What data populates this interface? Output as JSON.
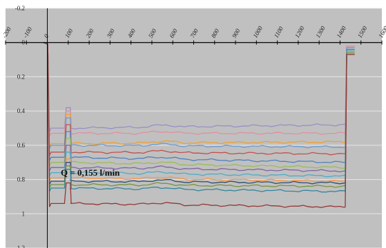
{
  "chart_data": {
    "type": "line",
    "title": "",
    "xlabel": "",
    "ylabel": "",
    "xlim": [
      -200,
      1600
    ],
    "ylim": [
      -0.2,
      1.2
    ],
    "y_inverted": true,
    "grid": true,
    "background": "#c0c0c0",
    "x_ticks": [
      "-200",
      "-100",
      "0",
      "100",
      "200",
      "300",
      "400",
      "500",
      "600",
      "700",
      "800",
      "900",
      "1000",
      "1100",
      "1200",
      "1300",
      "1400",
      "1500",
      "1600"
    ],
    "y_ticks": [
      "-0.2",
      "0",
      "0.2",
      "0.4",
      "0.6",
      "0.8",
      "1",
      "1.2"
    ],
    "annotation": "Q = 0,155 l/min",
    "start_x": -20,
    "drop_x": 10,
    "step_x": 110,
    "rise_x": 1420,
    "end_x": 1470,
    "pulse_x": [
      90,
      110
    ],
    "series": [
      {
        "color": "#9b8ec4",
        "level_start": 0.5,
        "level_end": 0.48,
        "baseline": 0.02,
        "pulse": 0.38
      },
      {
        "color": "#e08fa0",
        "level_start": 0.53,
        "level_end": 0.53,
        "baseline": 0.02,
        "pulse": 0.4
      },
      {
        "color": "#f0a030",
        "level_start": 0.59,
        "level_end": 0.58,
        "baseline": 0.03,
        "pulse": 0.42
      },
      {
        "color": "#6a9ad0",
        "level_start": 0.6,
        "level_end": 0.61,
        "baseline": 0.03,
        "pulse": 0.44
      },
      {
        "color": "#c0504d",
        "level_start": 0.64,
        "level_end": 0.65,
        "baseline": 0.04,
        "pulse": 0.48
      },
      {
        "color": "#4f81bd",
        "level_start": 0.67,
        "level_end": 0.7,
        "baseline": 0.04,
        "pulse": 0.52
      },
      {
        "color": "#9bbb59",
        "level_start": 0.7,
        "level_end": 0.73,
        "baseline": 0.05,
        "pulse": 0.56
      },
      {
        "color": "#8064a2",
        "level_start": 0.73,
        "level_end": 0.75,
        "baseline": 0.05,
        "pulse": 0.6
      },
      {
        "color": "#4bacc6",
        "level_start": 0.76,
        "level_end": 0.78,
        "baseline": 0.05,
        "pulse": 0.64
      },
      {
        "color": "#f79646",
        "level_start": 0.79,
        "level_end": 0.81,
        "baseline": 0.06,
        "pulse": 0.68
      },
      {
        "color": "#2c4d75",
        "level_start": 0.81,
        "level_end": 0.82,
        "baseline": 0.06,
        "pulse": 0.7
      },
      {
        "color": "#77933c",
        "level_start": 0.83,
        "level_end": 0.84,
        "baseline": 0.06,
        "pulse": 0.72
      },
      {
        "color": "#31859c",
        "level_start": 0.85,
        "level_end": 0.87,
        "baseline": 0.07,
        "pulse": 0.74
      },
      {
        "color": "#943634",
        "level_start": 0.94,
        "level_end": 0.96,
        "baseline": 0.07,
        "pulse": 0.82
      }
    ]
  }
}
